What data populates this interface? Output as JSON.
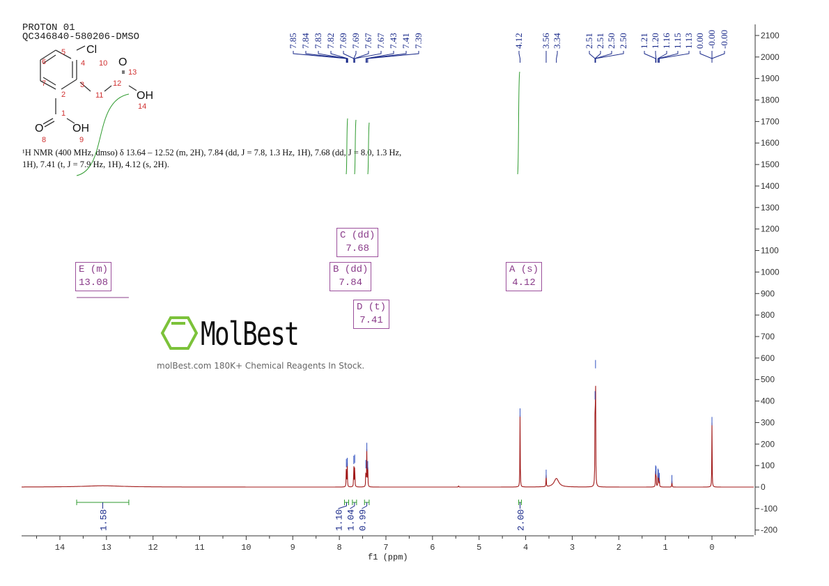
{
  "header": {
    "line1": "PROTON 01",
    "line2": "QC346840-580206-DMSO"
  },
  "structure": {
    "atoms": [
      "Cl",
      "O",
      "OH",
      "O",
      "OH"
    ],
    "numbers": [
      "1",
      "2",
      "3",
      "4",
      "5",
      "6",
      "7",
      "8",
      "9",
      "10",
      "11",
      "12",
      "13",
      "14"
    ]
  },
  "description": "¹H NMR (400 MHz, dmso) δ 13.64 – 12.52 (m, 2H), 7.84 (dd, J = 7.8, 1.3 Hz, 1H), 7.68 (dd, J = 8.0, 1.3 Hz, 1H), 7.41 (t, J = 7.9 Hz, 1H), 4.12 (s, 2H).",
  "watermark": {
    "logo": "MolBest",
    "tagline": "molBest.com 180K+ Chemical Reagents In Stock."
  },
  "multiplets": [
    {
      "label": "E (m)",
      "value": "13.08"
    },
    {
      "label": "C (dd)",
      "value": "7.68"
    },
    {
      "label": "B (dd)",
      "value": "7.84"
    },
    {
      "label": "D (t)",
      "value": "7.41"
    },
    {
      "label": "A (s)",
      "value": "4.12"
    }
  ],
  "chart_data": {
    "type": "line",
    "xlabel": "f1 (ppm)",
    "xlim": [
      14.8,
      -0.9
    ],
    "ylim": [
      -200,
      2150
    ],
    "xticks": [
      14,
      13,
      12,
      11,
      10,
      9,
      8,
      7,
      6,
      5,
      4,
      3,
      2,
      1,
      0
    ],
    "yticks": [
      2100,
      2000,
      1900,
      1800,
      1700,
      1600,
      1500,
      1400,
      1300,
      1200,
      1100,
      1000,
      900,
      800,
      700,
      600,
      500,
      400,
      300,
      200,
      100,
      0,
      -100,
      -200
    ],
    "peak_labels": [
      "7.85",
      "7.84",
      "7.83",
      "7.82",
      "7.69",
      "7.69",
      "7.67",
      "7.67",
      "7.43",
      "7.41",
      "7.39",
      "4.12",
      "3.56",
      "3.34",
      "2.51",
      "2.51",
      "2.50",
      "2.50",
      "1.21",
      "1.20",
      "1.16",
      "1.15",
      "1.13",
      "0.00",
      "-0.00",
      "-0.00"
    ],
    "peaks": [
      {
        "ppm": 13.08,
        "height": 6,
        "width": 0.5
      },
      {
        "ppm": 7.85,
        "height": 105
      },
      {
        "ppm": 7.83,
        "height": 110
      },
      {
        "ppm": 7.69,
        "height": 120
      },
      {
        "ppm": 7.67,
        "height": 125
      },
      {
        "ppm": 7.43,
        "height": 100
      },
      {
        "ppm": 7.41,
        "height": 180
      },
      {
        "ppm": 7.39,
        "height": 95
      },
      {
        "ppm": 5.44,
        "height": 8
      },
      {
        "ppm": 4.12,
        "height": 340
      },
      {
        "ppm": 3.56,
        "height": 55
      },
      {
        "ppm": 3.34,
        "height": 40,
        "width": 0.06
      },
      {
        "ppm": 2.51,
        "height": 420
      },
      {
        "ppm": 2.5,
        "height": 565
      },
      {
        "ppm": 1.21,
        "height": 75
      },
      {
        "ppm": 1.2,
        "height": 70
      },
      {
        "ppm": 1.16,
        "height": 60
      },
      {
        "ppm": 1.15,
        "height": 55
      },
      {
        "ppm": 1.13,
        "height": 40
      },
      {
        "ppm": 0.86,
        "height": 30
      },
      {
        "ppm": 0.0,
        "height": 300
      }
    ],
    "integrals": [
      {
        "from": 13.64,
        "to": 12.52,
        "value": "1.58"
      },
      {
        "from": 7.89,
        "to": 7.8,
        "value": "1.10"
      },
      {
        "from": 7.72,
        "to": 7.63,
        "value": "1.04"
      },
      {
        "from": 7.46,
        "to": 7.36,
        "value": "0.99"
      },
      {
        "from": 4.15,
        "to": 4.09,
        "value": "2.00"
      }
    ],
    "colors": {
      "spectrum": "#a01818",
      "peak_labels": "#1a2a8a",
      "integral": "#2e9a2e",
      "multiplet": "#8a3c8a"
    }
  }
}
